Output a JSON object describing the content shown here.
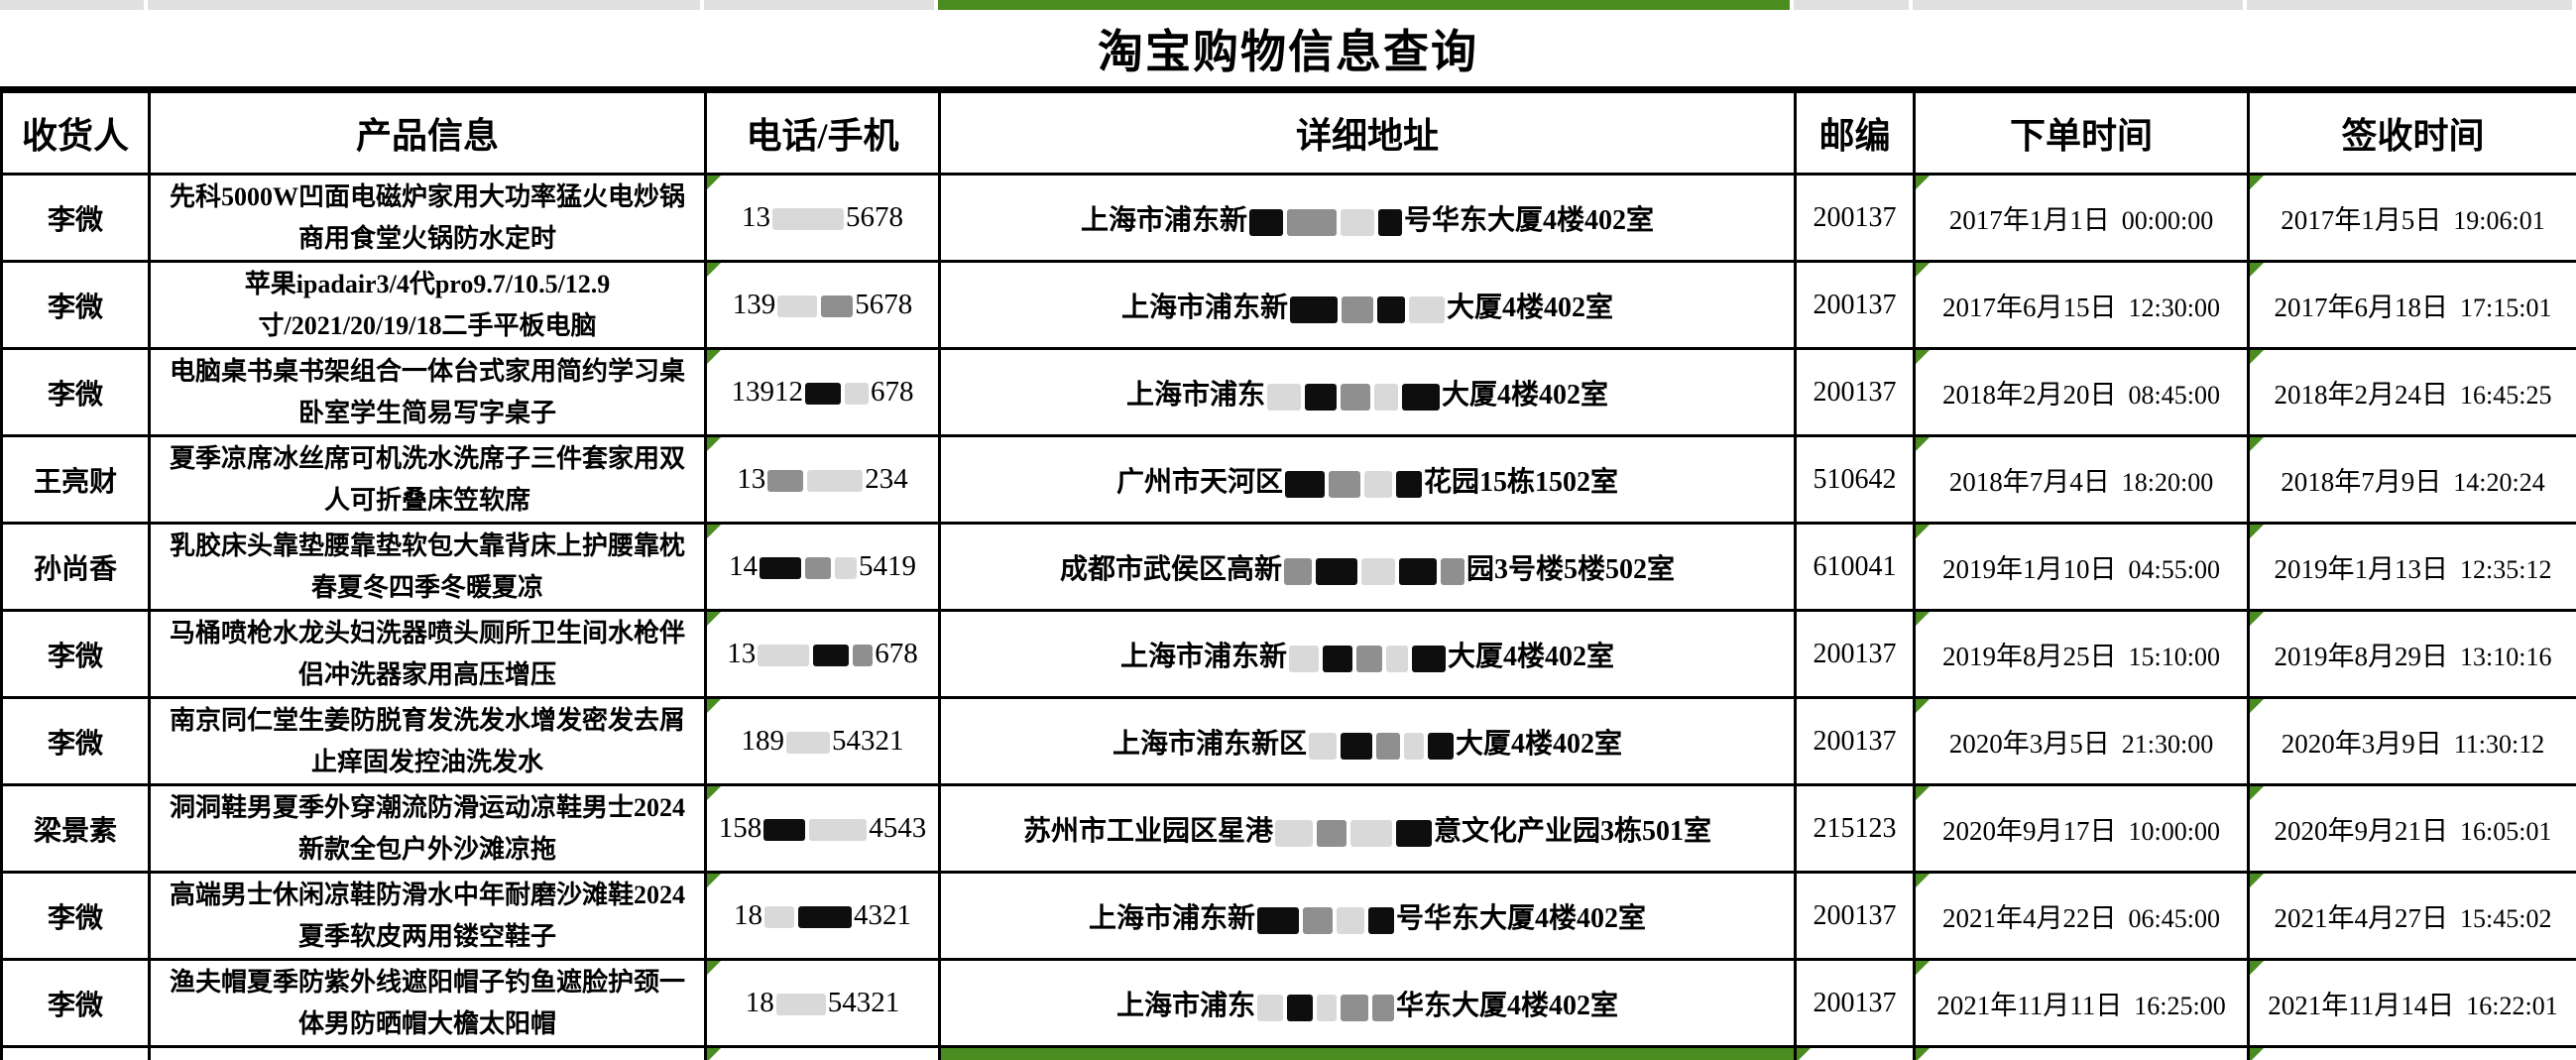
{
  "title": "淘宝购物信息查询",
  "colors": {
    "excel_green": "#4a8c1f",
    "clipped_cell_gray": "#e0e0e0",
    "border_black": "#000000"
  },
  "columns": [
    {
      "key": "name",
      "label": "收货人"
    },
    {
      "key": "product",
      "label": "产品信息"
    },
    {
      "key": "phone",
      "label": "电话/手机"
    },
    {
      "key": "address",
      "label": "详细地址"
    },
    {
      "key": "zip",
      "label": "邮编"
    },
    {
      "key": "order",
      "label": "下单时间"
    },
    {
      "key": "sign",
      "label": "签收时间"
    }
  ],
  "rows": [
    {
      "name": "李微",
      "product": "先科5000W凹面电磁炉家用大功率猛火电炒锅商用食堂火锅防水定时",
      "phone_tokens": [
        {
          "text": "13"
        },
        {
          "block": "light",
          "w": 72
        },
        {
          "text": "5678"
        }
      ],
      "address_tokens": [
        {
          "text": "上海市浦东新"
        },
        {
          "block": "black",
          "w": 34
        },
        {
          "block": "gray",
          "w": 50
        },
        {
          "block": "light",
          "w": 34
        },
        {
          "block": "black",
          "w": 24
        },
        {
          "text": "号华东大厦4楼402室"
        }
      ],
      "zip": "200137",
      "order_date": "2017年1月1日",
      "order_time": "00:00:00",
      "sign_date": "2017年1月5日",
      "sign_time": "19:06:01"
    },
    {
      "name": "李微",
      "product": "苹果ipadair3/4代pro9.7/10.5/12.9寸/2021/20/19/18二手平板电脑",
      "phone_tokens": [
        {
          "text": "139"
        },
        {
          "block": "light",
          "w": 40
        },
        {
          "block": "gray",
          "w": 32
        },
        {
          "text": "5678"
        }
      ],
      "address_tokens": [
        {
          "text": "上海市浦东新"
        },
        {
          "block": "black",
          "w": 48
        },
        {
          "block": "gray",
          "w": 32
        },
        {
          "block": "black",
          "w": 28
        },
        {
          "block": "light",
          "w": 36
        },
        {
          "text": "大厦4楼402室"
        }
      ],
      "zip": "200137",
      "order_date": "2017年6月15日",
      "order_time": "12:30:00",
      "sign_date": "2017年6月18日",
      "sign_time": "17:15:01"
    },
    {
      "name": "李微",
      "product": "电脑桌书桌书架组合一体台式家用简约学习桌卧室学生简易写字桌子",
      "phone_tokens": [
        {
          "text": "13912"
        },
        {
          "block": "black",
          "w": 36
        },
        {
          "block": "light",
          "w": 24
        },
        {
          "text": "678"
        }
      ],
      "address_tokens": [
        {
          "text": "上海市浦东"
        },
        {
          "block": "light",
          "w": 34
        },
        {
          "block": "black",
          "w": 32
        },
        {
          "block": "gray",
          "w": 30
        },
        {
          "block": "light",
          "w": 24
        },
        {
          "block": "black",
          "w": 38
        },
        {
          "text": "大厦4楼402室"
        }
      ],
      "zip": "200137",
      "order_date": "2018年2月20日",
      "order_time": "08:45:00",
      "sign_date": "2018年2月24日",
      "sign_time": "16:45:25"
    },
    {
      "name": "王亮财",
      "product": "夏季凉席冰丝席可机洗水洗席子三件套家用双人可折叠床笠软席",
      "phone_tokens": [
        {
          "text": "13"
        },
        {
          "block": "gray",
          "w": 36
        },
        {
          "block": "light",
          "w": 56
        },
        {
          "text": "234"
        }
      ],
      "address_tokens": [
        {
          "text": "广州市天河区"
        },
        {
          "block": "black",
          "w": 40
        },
        {
          "block": "gray",
          "w": 32
        },
        {
          "block": "light",
          "w": 28
        },
        {
          "block": "black",
          "w": 26
        },
        {
          "text": "花园15栋1502室"
        }
      ],
      "zip": "510642",
      "order_date": "2018年7月4日",
      "order_time": "18:20:00",
      "sign_date": "2018年7月9日",
      "sign_time": "14:20:24"
    },
    {
      "name": "孙尚香",
      "product": "乳胶床头靠垫腰靠垫软包大靠背床上护腰靠枕春夏冬四季冬暖夏凉",
      "phone_tokens": [
        {
          "text": "14"
        },
        {
          "block": "black",
          "w": 42
        },
        {
          "block": "gray",
          "w": 26
        },
        {
          "block": "light",
          "w": 22
        },
        {
          "text": "5419"
        }
      ],
      "address_tokens": [
        {
          "text": "成都市武侯区高新"
        },
        {
          "block": "gray",
          "w": 28
        },
        {
          "block": "black",
          "w": 42
        },
        {
          "block": "light",
          "w": 34
        },
        {
          "block": "black",
          "w": 38
        },
        {
          "block": "gray",
          "w": 24
        },
        {
          "text": "园3号楼5楼502室"
        }
      ],
      "zip": "610041",
      "order_date": "2019年1月10日",
      "order_time": "04:55:00",
      "sign_date": "2019年1月13日",
      "sign_time": "12:35:12"
    },
    {
      "name": "李微",
      "product": "马桶喷枪水龙头妇洗器喷头厕所卫生间水枪伴侣冲洗器家用高压增压",
      "phone_tokens": [
        {
          "text": "13"
        },
        {
          "block": "light",
          "w": 52
        },
        {
          "block": "black",
          "w": 36
        },
        {
          "block": "gray",
          "w": 20
        },
        {
          "text": "678"
        }
      ],
      "address_tokens": [
        {
          "text": "上海市浦东新"
        },
        {
          "block": "light",
          "w": 30
        },
        {
          "block": "black",
          "w": 30
        },
        {
          "block": "gray",
          "w": 26
        },
        {
          "block": "light",
          "w": 22
        },
        {
          "block": "black",
          "w": 34
        },
        {
          "text": "大厦4楼402室"
        }
      ],
      "zip": "200137",
      "order_date": "2019年8月25日",
      "order_time": "15:10:00",
      "sign_date": "2019年8月29日",
      "sign_time": "13:10:16"
    },
    {
      "name": "李微",
      "product": "南京同仁堂生姜防脱育发洗发水增发密发去屑止痒固发控油洗发水",
      "phone_tokens": [
        {
          "text": "189"
        },
        {
          "block": "light",
          "w": 44
        },
        {
          "text": "54321"
        }
      ],
      "address_tokens": [
        {
          "text": "上海市浦东新区"
        },
        {
          "block": "light",
          "w": 28
        },
        {
          "block": "black",
          "w": 32
        },
        {
          "block": "gray",
          "w": 24
        },
        {
          "block": "light",
          "w": 20
        },
        {
          "block": "black",
          "w": 26
        },
        {
          "text": "大厦4楼402室"
        }
      ],
      "zip": "200137",
      "order_date": "2020年3月5日",
      "order_time": "21:30:00",
      "sign_date": "2020年3月9日",
      "sign_time": "11:30:12"
    },
    {
      "name": "梁景素",
      "product": "洞洞鞋男夏季外穿潮流防滑运动凉鞋男士2024新款全包户外沙滩凉拖",
      "phone_tokens": [
        {
          "text": "158"
        },
        {
          "block": "black",
          "w": 42
        },
        {
          "block": "light",
          "w": 58
        },
        {
          "text": "4543"
        }
      ],
      "address_tokens": [
        {
          "text": "苏州市工业园区星港"
        },
        {
          "block": "light",
          "w": 38
        },
        {
          "block": "gray",
          "w": 30
        },
        {
          "block": "light",
          "w": 42
        },
        {
          "block": "black",
          "w": 36
        },
        {
          "text": "意文化产业园3栋501室"
        }
      ],
      "zip": "215123",
      "order_date": "2020年9月17日",
      "order_time": "10:00:00",
      "sign_date": "2020年9月21日",
      "sign_time": "16:05:01"
    },
    {
      "name": "李微",
      "product": "高端男士休闲凉鞋防滑水中年耐磨沙滩鞋2024夏季软皮两用镂空鞋子",
      "phone_tokens": [
        {
          "text": "18"
        },
        {
          "block": "light",
          "w": 30
        },
        {
          "block": "black",
          "w": 54
        },
        {
          "text": "4321"
        }
      ],
      "address_tokens": [
        {
          "text": "上海市浦东新"
        },
        {
          "block": "black",
          "w": 42
        },
        {
          "block": "gray",
          "w": 30
        },
        {
          "block": "light",
          "w": 28
        },
        {
          "block": "black",
          "w": 26
        },
        {
          "text": "号华东大厦4楼402室"
        }
      ],
      "zip": "200137",
      "order_date": "2021年4月22日",
      "order_time": "06:45:00",
      "sign_date": "2021年4月27日",
      "sign_time": "15:45:02"
    },
    {
      "name": "李微",
      "product": "渔夫帽夏季防紫外线遮阳帽子钓鱼遮脸护颈一体男防晒帽大檐太阳帽",
      "phone_tokens": [
        {
          "text": "18"
        },
        {
          "block": "light",
          "w": 50
        },
        {
          "text": "54321"
        }
      ],
      "address_tokens": [
        {
          "text": "上海市浦东"
        },
        {
          "block": "light",
          "w": 26
        },
        {
          "block": "black",
          "w": 26
        },
        {
          "block": "light",
          "w": 20
        },
        {
          "block": "gray",
          "w": 28
        },
        {
          "block": "gray",
          "w": 22
        },
        {
          "text": "华东大厦4楼402室"
        }
      ],
      "zip": "200137",
      "order_date": "2021年11月11日",
      "order_time": "16:25:00",
      "sign_date": "2021年11月14日",
      "sign_time": "16:22:01"
    }
  ]
}
